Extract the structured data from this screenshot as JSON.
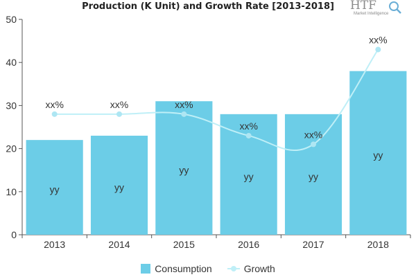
{
  "colors": {
    "bar": "#6ccde7",
    "line": "#bfeff7",
    "marker": "#aee6f3",
    "axis": "#555555",
    "grid": "#e5e5e5",
    "text": "#333333"
  },
  "logo": {
    "letters": "HTF",
    "subtitle": "Market Intelligence",
    "icon": "magnifier-icon"
  },
  "chart_data": {
    "type": "bar",
    "title": "Production (K Unit) and Growth Rate [2013-2018]",
    "categories": [
      "2013",
      "2014",
      "2015",
      "2016",
      "2017",
      "2018"
    ],
    "ylim": [
      0,
      50
    ],
    "yticks": [
      0,
      10,
      20,
      30,
      40,
      50
    ],
    "grid": false,
    "legend_position": "bottom",
    "series": [
      {
        "name": "Consumption",
        "type": "bar",
        "values": [
          22,
          23,
          31,
          28,
          28,
          38
        ],
        "labels": [
          "yy",
          "yy",
          "yy",
          "yy",
          "yy",
          "yy"
        ]
      },
      {
        "name": "Growth",
        "type": "line",
        "values": [
          28,
          28,
          28,
          23,
          21,
          43
        ],
        "labels": [
          "xx%",
          "xx%",
          "xx%",
          "xx%",
          "xx%",
          "xx%"
        ]
      }
    ]
  }
}
